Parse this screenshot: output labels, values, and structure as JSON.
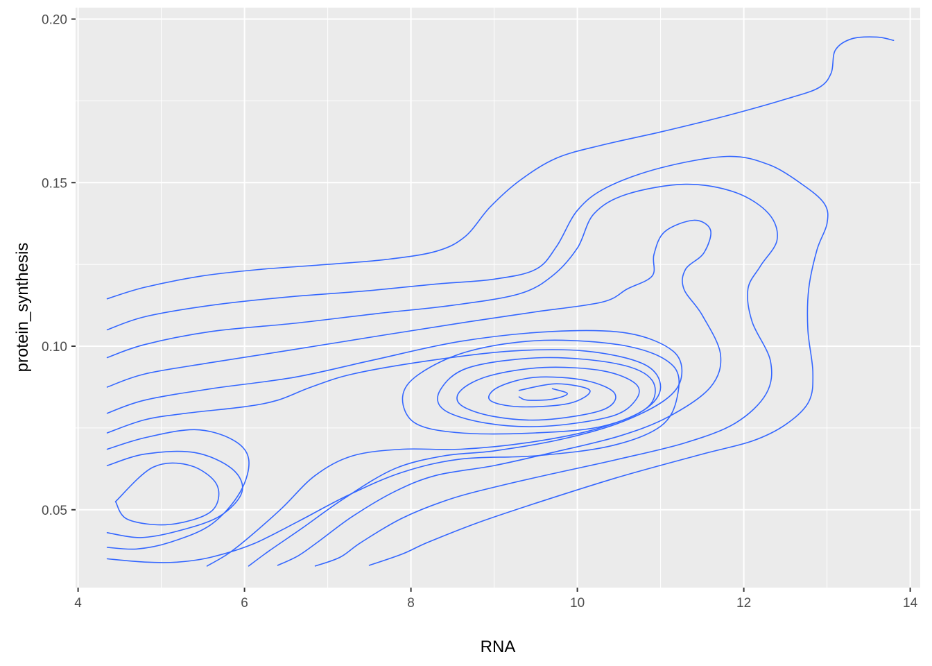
{
  "chart_data": {
    "type": "contour",
    "title": "",
    "xlabel": "RNA",
    "ylabel": "protein_synthesis",
    "xlim": [
      3.97,
      14.12
    ],
    "ylim": [
      0.0262,
      0.2035
    ],
    "x_ticks": [
      4,
      6,
      8,
      10,
      12,
      14
    ],
    "y_ticks": [
      0.05,
      0.1,
      0.15,
      0.2
    ],
    "x_tick_labels": [
      "4",
      "6",
      "8",
      "10",
      "12",
      "14"
    ],
    "y_tick_labels": [
      "0.05",
      "0.10",
      "0.15",
      "0.20"
    ],
    "grid": true,
    "legend": "none",
    "colors": {
      "line": "#3366FF",
      "panel": "#EBEBEB",
      "grid": "#FFFFFF"
    },
    "series": [
      {
        "points": [
          [
            4.35,
            0.1145
          ],
          [
            4.8,
            0.118
          ],
          [
            5.5,
            0.1215
          ],
          [
            6.2,
            0.1235
          ],
          [
            7,
            0.125
          ],
          [
            7.7,
            0.1265
          ],
          [
            8.3,
            0.129
          ],
          [
            8.65,
            0.1335
          ],
          [
            8.95,
            0.1425
          ],
          [
            9.3,
            0.1505
          ],
          [
            9.75,
            0.1575
          ],
          [
            10.3,
            0.1615
          ],
          [
            11,
            0.1655
          ],
          [
            11.8,
            0.1705
          ],
          [
            12.5,
            0.1755
          ],
          [
            12.9,
            0.179
          ],
          [
            13.05,
            0.1835
          ],
          [
            13.1,
            0.1905
          ],
          [
            13.3,
            0.194
          ],
          [
            13.6,
            0.1945
          ],
          [
            13.8,
            0.1935
          ]
        ]
      },
      {
        "points": [
          [
            4.35,
            0.105
          ],
          [
            4.8,
            0.109
          ],
          [
            5.6,
            0.1125
          ],
          [
            6.5,
            0.115
          ],
          [
            7.5,
            0.117
          ],
          [
            8.3,
            0.119
          ],
          [
            9,
            0.1205
          ],
          [
            9.5,
            0.1235
          ],
          [
            9.75,
            0.1305
          ],
          [
            10,
            0.1415
          ],
          [
            10.35,
            0.1485
          ],
          [
            11,
            0.1545
          ],
          [
            11.8,
            0.158
          ],
          [
            12.3,
            0.1555
          ],
          [
            12.7,
            0.1495
          ],
          [
            12.97,
            0.1435
          ],
          [
            13,
            0.1375
          ],
          [
            12.88,
            0.1295
          ],
          [
            12.78,
            0.1175
          ],
          [
            12.77,
            0.105
          ],
          [
            12.83,
            0.092
          ],
          [
            12.78,
            0.083
          ],
          [
            12.5,
            0.076
          ],
          [
            12.1,
            0.071
          ],
          [
            11.5,
            0.067
          ],
          [
            10.5,
            0.06
          ],
          [
            9.5,
            0.052
          ],
          [
            8.8,
            0.046
          ],
          [
            8.2,
            0.04
          ],
          [
            7.9,
            0.0365
          ],
          [
            7.5,
            0.033
          ]
        ]
      },
      {
        "points": [
          [
            4.35,
            0.0965
          ],
          [
            4.8,
            0.1005
          ],
          [
            5.6,
            0.1045
          ],
          [
            6.6,
            0.107
          ],
          [
            7.6,
            0.11
          ],
          [
            8.5,
            0.1125
          ],
          [
            9.3,
            0.116
          ],
          [
            9.7,
            0.1215
          ],
          [
            10,
            0.13
          ],
          [
            10.2,
            0.1405
          ],
          [
            10.6,
            0.1465
          ],
          [
            11.3,
            0.1495
          ],
          [
            11.9,
            0.147
          ],
          [
            12.3,
            0.1405
          ],
          [
            12.4,
            0.1325
          ],
          [
            12.2,
            0.1245
          ],
          [
            12.05,
            0.1175
          ],
          [
            12.1,
            0.1075
          ],
          [
            12.32,
            0.0955
          ],
          [
            12.27,
            0.0855
          ],
          [
            11.9,
            0.0765
          ],
          [
            11.3,
            0.0705
          ],
          [
            10.5,
            0.0655
          ],
          [
            9.7,
            0.061
          ],
          [
            9.1,
            0.0575
          ],
          [
            8.5,
            0.0535
          ],
          [
            7.9,
            0.0475
          ],
          [
            7.4,
            0.04
          ],
          [
            7.15,
            0.0355
          ],
          [
            6.85,
            0.0328
          ]
        ]
      },
      {
        "points": [
          [
            4.35,
            0.0875
          ],
          [
            4.8,
            0.0915
          ],
          [
            5.6,
            0.095
          ],
          [
            6.6,
            0.099
          ],
          [
            7.7,
            0.1035
          ],
          [
            8.7,
            0.1075
          ],
          [
            9.5,
            0.1105
          ],
          [
            10.3,
            0.1135
          ],
          [
            10.6,
            0.1175
          ],
          [
            10.9,
            0.1215
          ],
          [
            10.92,
            0.128
          ],
          [
            11.05,
            0.135
          ],
          [
            11.4,
            0.1385
          ],
          [
            11.6,
            0.1355
          ],
          [
            11.52,
            0.1285
          ],
          [
            11.3,
            0.1235
          ],
          [
            11.28,
            0.1175
          ],
          [
            11.5,
            0.1095
          ],
          [
            11.72,
            0.0975
          ],
          [
            11.6,
            0.0875
          ],
          [
            11.1,
            0.0785
          ],
          [
            10.5,
            0.0725
          ],
          [
            9.7,
            0.0675
          ],
          [
            9,
            0.0635
          ],
          [
            8.3,
            0.0605
          ],
          [
            7.8,
            0.0555
          ],
          [
            7.3,
            0.048
          ],
          [
            6.9,
            0.0405
          ],
          [
            6.65,
            0.036
          ],
          [
            6.4,
            0.033
          ]
        ]
      },
      {
        "points": [
          [
            4.35,
            0.0795
          ],
          [
            4.8,
            0.0835
          ],
          [
            5.6,
            0.087
          ],
          [
            6.6,
            0.0905
          ],
          [
            7.5,
            0.0955
          ],
          [
            8.6,
            0.1015
          ],
          [
            9.7,
            0.1045
          ],
          [
            10.6,
            0.104
          ],
          [
            11.15,
            0.0985
          ],
          [
            11.25,
            0.0905
          ],
          [
            11.05,
            0.0835
          ],
          [
            10.5,
            0.0765
          ],
          [
            9.8,
            0.0715
          ],
          [
            9,
            0.068
          ],
          [
            8.4,
            0.0665
          ],
          [
            7.8,
            0.0625
          ],
          [
            7.2,
            0.0535
          ],
          [
            6.7,
            0.0445
          ],
          [
            6.3,
            0.0375
          ],
          [
            6.05,
            0.0328
          ]
        ]
      },
      {
        "points": [
          [
            4.35,
            0.0735
          ],
          [
            4.8,
            0.0775
          ],
          [
            5.3,
            0.0795
          ],
          [
            6,
            0.0815
          ],
          [
            6.4,
            0.0835
          ],
          [
            6.8,
            0.0875
          ],
          [
            7.3,
            0.0915
          ],
          [
            8.2,
            0.0955
          ],
          [
            9.2,
            0.0985
          ],
          [
            10.1,
            0.0985
          ],
          [
            10.8,
            0.0945
          ],
          [
            11,
            0.0875
          ],
          [
            10.8,
            0.0805
          ],
          [
            10.2,
            0.0745
          ],
          [
            9.4,
            0.0705
          ],
          [
            8.6,
            0.0685
          ],
          [
            7.9,
            0.0685
          ],
          [
            7.3,
            0.0665
          ],
          [
            6.85,
            0.0605
          ],
          [
            6.45,
            0.0505
          ],
          [
            6.05,
            0.0415
          ],
          [
            5.8,
            0.0365
          ],
          [
            5.55,
            0.0328
          ]
        ]
      },
      {
        "points": [
          [
            4.35,
            0.0685
          ],
          [
            4.8,
            0.072
          ],
          [
            5.4,
            0.0745
          ],
          [
            5.85,
            0.0715
          ],
          [
            6.05,
            0.0655
          ],
          [
            5.95,
            0.0555
          ],
          [
            5.6,
            0.0455
          ],
          [
            5.1,
            0.04
          ],
          [
            4.7,
            0.038
          ],
          [
            4.35,
            0.0385
          ]
        ]
      },
      {
        "points": [
          [
            4.35,
            0.0635
          ],
          [
            4.8,
            0.067
          ],
          [
            5.4,
            0.0675
          ],
          [
            5.85,
            0.0625
          ],
          [
            5.97,
            0.0555
          ],
          [
            5.7,
            0.048
          ],
          [
            5.2,
            0.0435
          ],
          [
            4.75,
            0.0415
          ],
          [
            4.35,
            0.043
          ]
        ]
      },
      {
        "points": [
          [
            4.45,
            0.0525
          ],
          [
            4.9,
            0.063
          ],
          [
            5.35,
            0.0635
          ],
          [
            5.67,
            0.0575
          ],
          [
            5.6,
            0.0495
          ],
          [
            5.1,
            0.0455
          ],
          [
            4.6,
            0.047
          ],
          [
            4.45,
            0.0525
          ]
        ]
      },
      {
        "points": [
          [
            4.35,
            0.035
          ],
          [
            4.8,
            0.034
          ],
          [
            5.2,
            0.034
          ],
          [
            5.6,
            0.0355
          ],
          [
            6.1,
            0.0395
          ],
          [
            6.65,
            0.0465
          ],
          [
            7.25,
            0.0545
          ],
          [
            7.9,
            0.0615
          ],
          [
            8.6,
            0.0655
          ],
          [
            9.5,
            0.0665
          ],
          [
            10.4,
            0.0695
          ],
          [
            11,
            0.0755
          ],
          [
            11.2,
            0.0845
          ],
          [
            11.15,
            0.094
          ],
          [
            10.6,
            0.1
          ],
          [
            9.6,
            0.1018
          ],
          [
            8.7,
            0.0985
          ],
          [
            8.1,
            0.0915
          ],
          [
            7.9,
            0.0845
          ],
          [
            8.05,
            0.0765
          ],
          [
            8.6,
            0.0735
          ],
          [
            9.5,
            0.0735
          ],
          [
            10.3,
            0.0755
          ],
          [
            10.85,
            0.0815
          ],
          [
            10.9,
            0.0895
          ],
          [
            10.5,
            0.0945
          ],
          [
            9.6,
            0.0965
          ],
          [
            8.7,
            0.0935
          ],
          [
            8.35,
            0.0865
          ],
          [
            8.4,
            0.0805
          ],
          [
            8.9,
            0.0765
          ],
          [
            9.6,
            0.0755
          ],
          [
            10.4,
            0.0785
          ],
          [
            10.7,
            0.0835
          ],
          [
            10.7,
            0.0885
          ],
          [
            10.3,
            0.0925
          ],
          [
            9.6,
            0.0935
          ],
          [
            8.95,
            0.091
          ],
          [
            8.6,
            0.0865
          ],
          [
            8.6,
            0.082
          ],
          [
            9,
            0.0785
          ],
          [
            9.6,
            0.0775
          ],
          [
            10.3,
            0.0805
          ],
          [
            10.45,
            0.0855
          ],
          [
            10.1,
            0.0895
          ],
          [
            9.5,
            0.0905
          ],
          [
            9.05,
            0.0875
          ],
          [
            8.95,
            0.0835
          ],
          [
            9.3,
            0.0815
          ],
          [
            9.9,
            0.0825
          ],
          [
            10.15,
            0.0865
          ],
          [
            9.75,
            0.0885
          ],
          [
            9.3,
            0.0865
          ]
        ]
      },
      {
        "points": [
          [
            9.3,
            0.0845
          ],
          [
            9.4,
            0.0835
          ],
          [
            9.7,
            0.0838
          ],
          [
            9.88,
            0.0855
          ],
          [
            9.7,
            0.087
          ]
        ]
      }
    ]
  }
}
